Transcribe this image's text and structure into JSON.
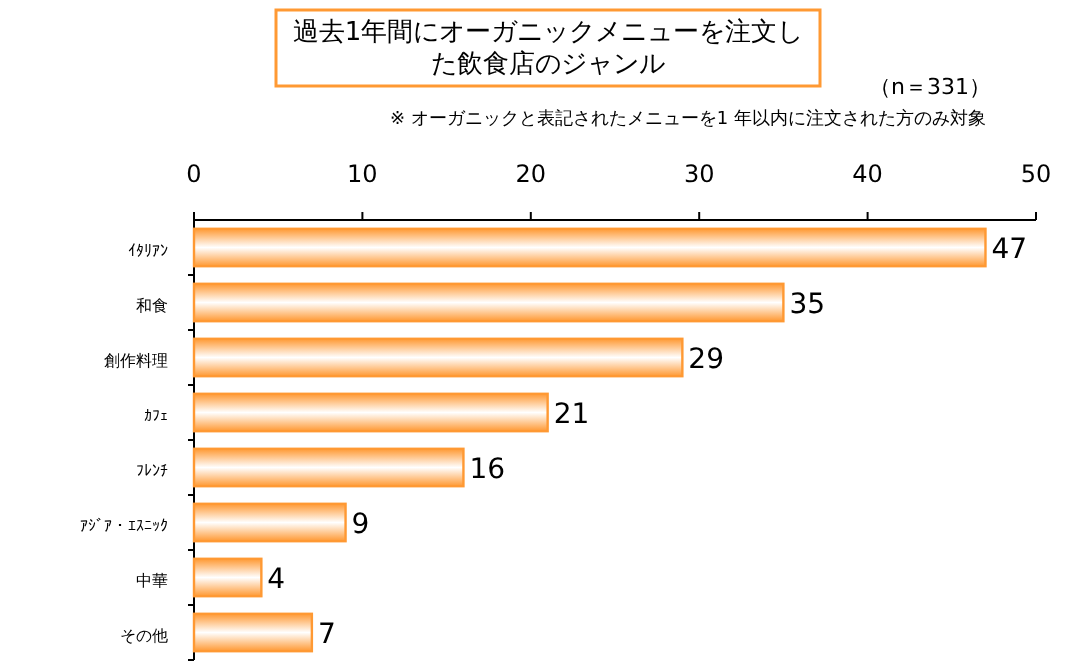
{
  "chart_data": {
    "type": "bar",
    "orientation": "horizontal",
    "title": "過去1年間にオーガニックメニューを注文した飲食店のジャンル",
    "annotations": [
      "（n＝331）",
      "※  オーガニックと表記されたメニューを1 年以内に注文された方のみ対象"
    ],
    "categories": [
      "ｲﾀﾘｱﾝ",
      "和食",
      "創作料理",
      "ｶﾌｪ",
      "ﾌﾚﾝﾁ",
      "ｱｼﾞｱ・ｴｽﾆｯｸ",
      "中華",
      "その他"
    ],
    "values": [
      47,
      35,
      29,
      21,
      16,
      9,
      4,
      7
    ],
    "color": "#ff9933",
    "xlim": [
      0,
      50
    ],
    "xticks": [
      0,
      10,
      20,
      30,
      40,
      50
    ],
    "data_labels": true,
    "grid": false
  }
}
